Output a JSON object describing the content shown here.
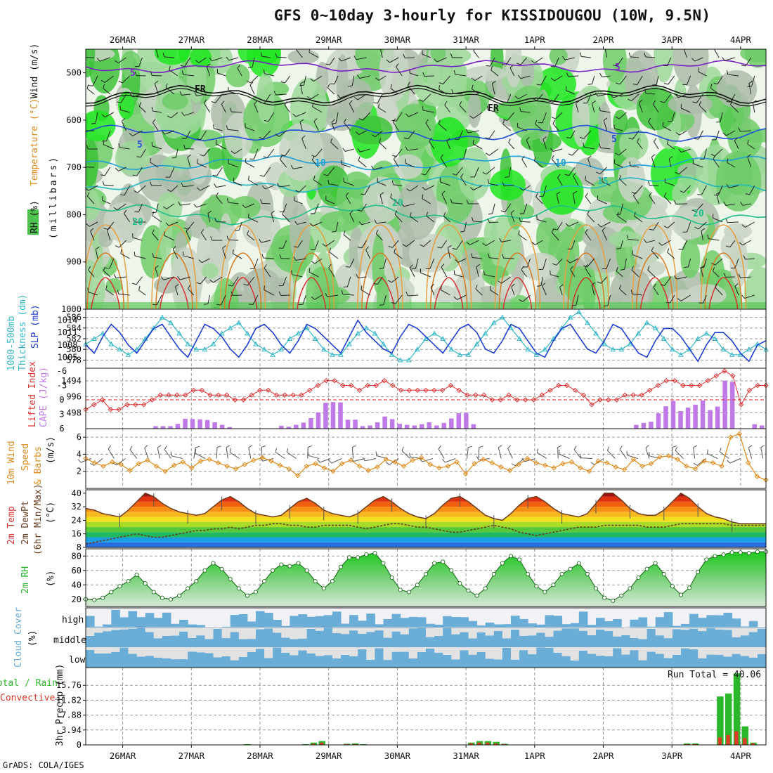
{
  "title": "GFS 0~10day 3-hourly for KISSIDOUGOU (10W, 9.5N)",
  "credit": "GrADS: COLA/IGES",
  "dates": [
    "26MAR",
    "27MAR",
    "28MAR",
    "29MAR",
    "30MAR",
    "31MAR",
    "1APR",
    "2APR",
    "3APR",
    "4APR"
  ],
  "colors": {
    "rh_green": "#4ec44e",
    "slp": "#1f3fd0",
    "thickness": "#33b8c8",
    "lifted_index": "#e03030",
    "cape": "#c07ae8",
    "wind_speed": "#e08a1a",
    "temp_line": "#6b3b1e",
    "rh2m": "#28b428",
    "cloud": "#6aaed8",
    "precip_total": "#2ab82a",
    "precip_conv": "#e03a2a"
  },
  "labels": {
    "p1_rh": "RH (%)",
    "p1_temp": "Temperature (°C)",
    "p1_wind": "Wind (m/s)",
    "p1_axis": "(millibars)",
    "p2_thk": "1000-500mb",
    "p2_thk2": "Thickness (dm)",
    "p2_slp": "SLP (mb)",
    "p3_li": "Lifted Index",
    "p3_cape": "CAPE (J/kg)",
    "p4_a": "10m Wind",
    "p4_b": "Speed",
    "p4_c": "& Barbs",
    "p4_unit": "(m/s)",
    "p5_a": "2m Temp",
    "p5_b": "2m DewPt",
    "p5_c": "(6hr Min/Max)",
    "p5_unit": "(°C)",
    "p6_a": "2m RH",
    "p6_unit": "(%)",
    "p7_a": "Cloud Cover",
    "p7_unit": "(%)",
    "p7_high": "high",
    "p7_mid": "middle",
    "p7_low": "low",
    "p8_a": "Total / Rain",
    "p8_b": "Convective",
    "p8_c": "3hr Precip (mm)",
    "run_total": "Run Total = 40.06"
  },
  "chart_data": [
    {
      "type": "heatmap",
      "name": "upper-air",
      "yticks": [
        500,
        600,
        700,
        800,
        900,
        1000
      ],
      "ylim": [
        450,
        1000
      ],
      "contour_labels": {
        "wind": [
          "5",
          "5",
          "5",
          "5"
        ],
        "temp": [
          "10",
          "10",
          "15",
          "20",
          "20",
          "20"
        ],
        "freezing": [
          "FR",
          "FR"
        ],
        "rh": [
          "30",
          "30"
        ]
      }
    },
    {
      "type": "line",
      "name": "thickness-slp",
      "yticks_left": [
        578,
        580,
        582,
        584,
        586
      ],
      "yticks_right": [
        1005,
        1008,
        1011,
        1014
      ],
      "series": [
        {
          "name": "SLP",
          "unit": "mb",
          "values": [
            1008,
            1006,
            1010,
            1013,
            1011,
            1008,
            1006,
            1009,
            1012,
            1013,
            1010,
            1007,
            1005,
            1009,
            1013,
            1012,
            1010,
            1007,
            1005,
            1008,
            1012,
            1013,
            1011,
            1008,
            1006,
            1009,
            1013,
            1012,
            1010,
            1008,
            1006,
            1010,
            1014,
            1011,
            1009,
            1007,
            1006,
            1010,
            1013,
            1012,
            1010,
            1008,
            1006,
            1009,
            1012,
            1013,
            1011,
            1007,
            1006,
            1009,
            1013,
            1012,
            1009,
            1006,
            1005,
            1009,
            1012,
            1013,
            1010,
            1007,
            1006,
            1009,
            1013,
            1012,
            1009,
            1006,
            1005,
            1009,
            1012,
            1012,
            1010,
            1007,
            1004,
            1008,
            1011,
            1011,
            1009,
            1006,
            1004,
            1008,
            1009
          ]
        },
        {
          "name": "Thickness",
          "unit": "dm",
          "values": [
            581,
            582,
            583,
            581,
            580,
            579,
            580,
            582,
            584,
            586,
            585,
            583,
            581,
            580,
            580,
            581,
            583,
            584,
            585,
            583,
            581,
            580,
            579,
            580,
            582,
            583,
            584,
            582,
            580,
            579,
            579,
            581,
            583,
            584,
            583,
            581,
            579,
            578,
            578,
            580,
            582,
            583,
            582,
            580,
            579,
            579,
            581,
            583,
            585,
            586,
            584,
            582,
            580,
            579,
            580,
            582,
            584,
            586,
            587,
            585,
            583,
            581,
            580,
            580,
            581,
            583,
            585,
            584,
            582,
            580,
            579,
            580,
            582,
            583,
            582,
            580,
            579,
            579,
            580,
            581,
            580
          ]
        }
      ]
    },
    {
      "type": "bar",
      "name": "lifted-index-cape",
      "yticks_li": [
        -6,
        -3,
        0,
        3,
        6
      ],
      "yticks_cape": [
        498,
        996,
        1494
      ],
      "series": [
        {
          "name": "Lifted Index",
          "values": [
            2,
            1,
            0,
            2,
            2,
            1,
            1,
            1,
            0,
            -1,
            -1,
            -1,
            -1,
            -2,
            -2,
            -1,
            -1,
            -1,
            0,
            0,
            -1,
            -2,
            -2,
            -1,
            -1,
            -1,
            -1,
            -2,
            -3,
            -4,
            -4,
            -3,
            -3,
            -2,
            -3,
            -3,
            -4,
            -3,
            -2,
            -2,
            -2,
            -2,
            -2,
            -2,
            -3,
            -2,
            -1,
            -1,
            -1,
            0,
            0,
            -1,
            0,
            0,
            0,
            -1,
            -2,
            -3,
            -3,
            -2,
            -1,
            1,
            0,
            0,
            0,
            -1,
            -1,
            -1,
            -2,
            -3,
            -4,
            -4,
            -3,
            -3,
            -3,
            -4,
            -5,
            -6,
            -5,
            1,
            -2,
            -3,
            -3
          ]
        },
        {
          "name": "CAPE",
          "unit": "J/kg",
          "values": [
            0,
            0,
            0,
            0,
            0,
            0,
            0,
            0,
            0,
            80,
            80,
            80,
            150,
            310,
            300,
            290,
            270,
            200,
            120,
            50,
            0,
            0,
            0,
            0,
            0,
            0,
            90,
            60,
            120,
            190,
            330,
            510,
            810,
            830,
            820,
            280,
            280,
            80,
            100,
            200,
            380,
            300,
            150,
            120,
            100,
            140,
            200,
            100,
            180,
            320,
            480,
            500,
            140,
            0,
            0,
            0,
            0,
            0,
            0,
            0,
            0,
            0,
            0,
            0,
            0,
            0,
            0,
            0,
            0,
            0,
            0,
            0,
            0,
            0,
            120,
            180,
            220,
            480,
            700,
            870,
            550,
            660,
            750,
            880,
            580,
            690,
            1500,
            1460,
            0,
            0,
            140,
            100
          ]
        }
      ]
    },
    {
      "type": "line",
      "name": "10m-wind",
      "yticks": [
        2,
        4,
        6
      ],
      "series": [
        {
          "name": "Speed",
          "unit": "m/s",
          "values": [
            3.5,
            3.0,
            2.6,
            3.1,
            2.8,
            2.1,
            2.9,
            3.3,
            2.6,
            2.0,
            2.7,
            3.1,
            2.4,
            3.2,
            3.4,
            3.0,
            2.6,
            2.3,
            2.8,
            3.3,
            3.6,
            3.2,
            2.7,
            2.3,
            1.5,
            2.6,
            2.9,
            2.4,
            2.0,
            2.9,
            3.3,
            2.6,
            2.1,
            2.5,
            3.4,
            3.1,
            2.6,
            3.3,
            3.6,
            2.8,
            2.4,
            2.6,
            3.1,
            1.7,
            2.9,
            3.4,
            3.0,
            2.5,
            2.1,
            2.8,
            3.5,
            3.0,
            2.7,
            2.4,
            2.9,
            3.1,
            2.4,
            2.0,
            3.2,
            3.0,
            2.5,
            2.2,
            3.4,
            2.6,
            2.9,
            3.7,
            3.8,
            3.4,
            2.6,
            2.3,
            3.2,
            3.0,
            2.6,
            6.0,
            6.4,
            3.0,
            1.4,
            1.0
          ]
        }
      ]
    },
    {
      "type": "area",
      "name": "2m-temp-dewpt",
      "yticks": [
        8,
        16,
        24,
        32,
        40
      ],
      "series": [
        {
          "name": "2m Temp",
          "unit": "°C",
          "values": [
            31,
            30,
            28,
            27,
            26,
            30,
            35,
            40,
            38,
            34,
            31,
            29,
            28,
            27,
            28,
            32,
            36,
            38,
            35,
            31,
            28,
            27,
            26,
            27,
            31,
            35,
            37,
            34,
            30,
            28,
            27,
            26,
            28,
            32,
            36,
            38,
            35,
            31,
            28,
            26,
            25,
            28,
            33,
            37,
            38,
            35,
            31,
            27,
            25,
            24,
            28,
            33,
            37,
            38,
            35,
            31,
            28,
            27,
            26,
            28,
            34,
            40,
            40,
            36,
            31,
            28,
            27,
            27,
            30,
            35,
            40,
            37,
            32,
            28,
            26,
            25,
            23,
            22,
            22,
            22,
            22
          ]
        },
        {
          "name": "2m DewPt",
          "unit": "°C",
          "values": [
            10,
            11,
            12,
            13,
            14,
            15,
            16,
            15,
            14,
            14,
            15,
            16,
            17,
            18,
            18,
            19,
            19,
            20,
            19,
            20,
            21,
            21,
            22,
            22,
            21,
            21,
            20,
            20,
            21,
            21,
            21,
            21,
            20,
            19,
            20,
            21,
            22,
            22,
            21,
            20,
            20,
            19,
            18,
            17,
            17,
            18,
            19,
            20,
            21,
            20,
            19,
            17,
            16,
            15,
            16,
            17,
            18,
            19,
            20,
            20,
            20,
            21,
            21,
            21,
            21,
            21,
            20,
            20,
            20,
            21,
            22,
            22,
            22,
            22,
            22,
            22,
            21,
            21,
            21,
            21,
            21
          ]
        }
      ]
    },
    {
      "type": "area",
      "name": "2m-rh",
      "yticks": [
        20,
        40,
        60,
        80
      ],
      "series": [
        {
          "name": "2m RH",
          "unit": "%",
          "values": [
            20,
            19,
            22,
            30,
            38,
            45,
            54,
            42,
            30,
            22,
            20,
            25,
            35,
            45,
            60,
            70,
            62,
            48,
            35,
            25,
            30,
            45,
            60,
            68,
            66,
            70,
            60,
            45,
            35,
            45,
            65,
            78,
            78,
            82,
            84,
            70,
            50,
            33,
            30,
            40,
            55,
            70,
            72,
            60,
            42,
            32,
            25,
            35,
            55,
            70,
            80,
            75,
            55,
            38,
            30,
            40,
            55,
            62,
            70,
            55,
            35,
            22,
            18,
            25,
            35,
            50,
            62,
            70,
            55,
            38,
            26,
            36,
            58,
            75,
            80,
            82,
            85,
            85,
            84,
            86,
            86
          ]
        }
      ]
    },
    {
      "type": "heatmap",
      "name": "cloud-cover",
      "rows": [
        "high",
        "middle",
        "low"
      ]
    },
    {
      "type": "bar",
      "name": "precip",
      "yticks": [
        0,
        3.94,
        7.88,
        11.82,
        15.76
      ],
      "series": [
        {
          "name": "Total",
          "unit": "mm",
          "values": [
            0,
            0,
            0,
            0,
            0,
            0,
            0,
            0,
            0,
            0,
            0,
            0,
            0,
            0,
            0,
            0,
            0,
            0,
            0,
            0.2,
            0,
            0,
            0,
            0,
            0,
            0,
            0.2,
            0.6,
            1.0,
            0,
            0,
            0.3,
            0.4,
            0.2,
            0,
            0,
            0,
            0,
            0,
            0,
            0,
            0,
            0,
            0,
            0,
            0,
            0.6,
            1.0,
            1.0,
            0.8,
            0.3,
            0,
            0,
            0,
            0,
            0,
            0,
            0,
            0,
            0,
            0,
            0,
            0,
            0,
            0,
            0,
            0,
            0,
            0,
            0,
            0,
            0,
            0.4,
            0.4,
            0,
            0,
            12.8,
            13.6,
            18.9,
            4.9,
            0.6,
            0
          ]
        },
        {
          "name": "Convective",
          "unit": "mm",
          "values": [
            0,
            0,
            0,
            0,
            0,
            0,
            0,
            0,
            0,
            0,
            0,
            0,
            0,
            0,
            0,
            0,
            0,
            0,
            0,
            0.1,
            0,
            0,
            0,
            0,
            0,
            0,
            0.1,
            0.3,
            0.6,
            0,
            0,
            0.2,
            0.2,
            0.1,
            0,
            0,
            0,
            0,
            0,
            0,
            0,
            0,
            0,
            0,
            0,
            0,
            0.4,
            0.6,
            0.6,
            0.4,
            0.2,
            0,
            0,
            0,
            0,
            0,
            0,
            0,
            0,
            0,
            0,
            0,
            0,
            0,
            0,
            0,
            0,
            0,
            0,
            0,
            0,
            0,
            0.2,
            0.2,
            0,
            0,
            2.0,
            2.6,
            3.6,
            1.8,
            0.4,
            0
          ]
        }
      ]
    }
  ]
}
